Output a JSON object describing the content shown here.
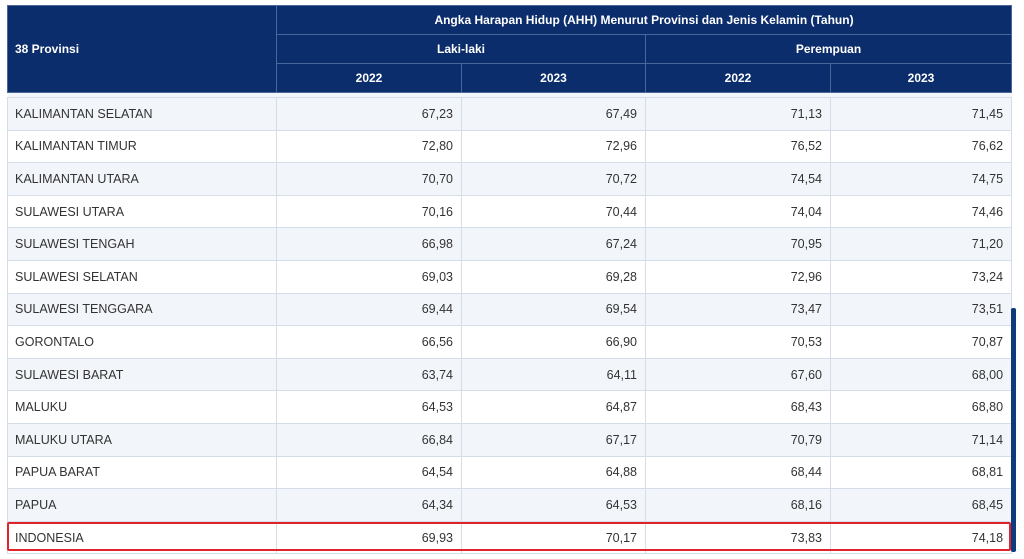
{
  "header": {
    "province_col": "38 Provinsi",
    "title": "Angka Harapan Hidup (AHH) Menurut Provinsi dan Jenis Kelamin (Tahun)",
    "groups": [
      "Laki-laki",
      "Perempuan"
    ],
    "years": [
      "2022",
      "2023",
      "2022",
      "2023"
    ]
  },
  "rows": [
    {
      "name": "KALIMANTAN SELATAN",
      "v": [
        "67,23",
        "67,49",
        "71,13",
        "71,45"
      ]
    },
    {
      "name": "KALIMANTAN TIMUR",
      "v": [
        "72,80",
        "72,96",
        "76,52",
        "76,62"
      ]
    },
    {
      "name": "KALIMANTAN UTARA",
      "v": [
        "70,70",
        "70,72",
        "74,54",
        "74,75"
      ]
    },
    {
      "name": "SULAWESI UTARA",
      "v": [
        "70,16",
        "70,44",
        "74,04",
        "74,46"
      ]
    },
    {
      "name": "SULAWESI TENGAH",
      "v": [
        "66,98",
        "67,24",
        "70,95",
        "71,20"
      ]
    },
    {
      "name": "SULAWESI SELATAN",
      "v": [
        "69,03",
        "69,28",
        "72,96",
        "73,24"
      ]
    },
    {
      "name": "SULAWESI TENGGARA",
      "v": [
        "69,44",
        "69,54",
        "73,47",
        "73,51"
      ]
    },
    {
      "name": "GORONTALO",
      "v": [
        "66,56",
        "66,90",
        "70,53",
        "70,87"
      ]
    },
    {
      "name": "SULAWESI BARAT",
      "v": [
        "63,74",
        "64,11",
        "67,60",
        "68,00"
      ]
    },
    {
      "name": "MALUKU",
      "v": [
        "64,53",
        "64,87",
        "68,43",
        "68,80"
      ]
    },
    {
      "name": "MALUKU UTARA",
      "v": [
        "66,84",
        "67,17",
        "70,79",
        "71,14"
      ]
    },
    {
      "name": "PAPUA BARAT",
      "v": [
        "64,54",
        "64,88",
        "68,44",
        "68,81"
      ]
    },
    {
      "name": "PAPUA",
      "v": [
        "64,34",
        "64,53",
        "68,16",
        "68,45"
      ]
    },
    {
      "name": "INDONESIA",
      "v": [
        "69,93",
        "70,17",
        "73,83",
        "74,18"
      ]
    }
  ],
  "colors": {
    "header_bg": "#0c2d6b",
    "highlight": "#e0242a"
  }
}
